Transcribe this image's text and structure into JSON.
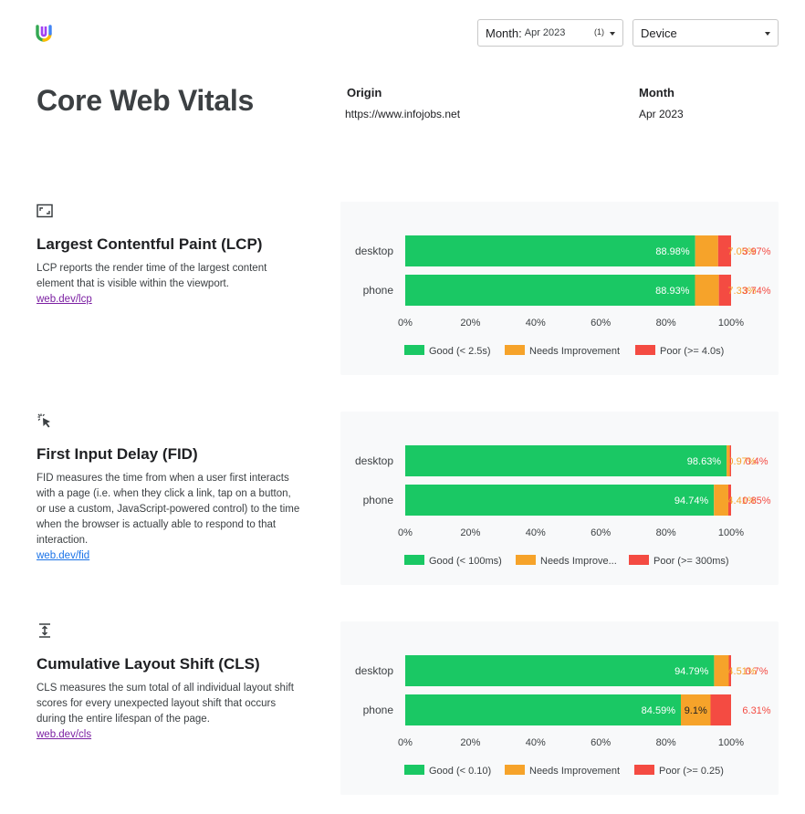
{
  "filters": {
    "month_label": "Month:",
    "month_value": "Apr 2023",
    "month_count": "(1)",
    "device_label": "Device"
  },
  "page_title": "Core Web Vitals",
  "meta": {
    "origin_label": "Origin",
    "origin_value": "https://www.infojobs.net",
    "month_label": "Month",
    "month_value": "Apr 2023"
  },
  "colors": {
    "good": "#1ac864",
    "needs": "#f6a32a",
    "poor": "#f44b42",
    "panel": "#f8f9fa"
  },
  "sections": [
    {
      "icon": "lcp-viewport-icon",
      "title": "Largest Contentful Paint (LCP)",
      "description": "LCP reports the render time of the largest content element that is visible within the viewport.",
      "link": "web.dev/lcp"
    },
    {
      "icon": "fid-click-icon",
      "title": "First Input Delay (FID)",
      "description": "FID measures the time from when a user first interacts with a page (i.e. when they click a link, tap on a button, or use a custom, JavaScript-powered control) to the time when the browser is actually able to respond to that interaction.",
      "link": "web.dev/fid"
    },
    {
      "icon": "cls-shift-icon",
      "title": "Cumulative Layout Shift (CLS)",
      "description": "CLS measures the sum total of all individual layout shift scores for every unexpected layout shift that occurs during the entire lifespan of the page.",
      "link": "web.dev/cls"
    }
  ],
  "chart_data": [
    {
      "type": "bar",
      "orientation": "horizontal",
      "stacked": true,
      "categories": [
        "desktop",
        "phone"
      ],
      "series": [
        {
          "name": "Good (< 2.5s)",
          "values": [
            88.98,
            88.93
          ],
          "labels": [
            "88.98%",
            "88.93%"
          ]
        },
        {
          "name": "Needs Improvement",
          "values": [
            7.05,
            7.33
          ],
          "labels": [
            "7.05%",
            "7.33%"
          ]
        },
        {
          "name": "Poor (>= 4.0s)",
          "values": [
            3.97,
            3.74
          ],
          "labels": [
            "3.97%",
            "3.74%"
          ]
        }
      ],
      "xlim": [
        0,
        100
      ],
      "xticks": [
        "0%",
        "20%",
        "40%",
        "60%",
        "80%",
        "100%"
      ],
      "legend": "bottom"
    },
    {
      "type": "bar",
      "orientation": "horizontal",
      "stacked": true,
      "categories": [
        "desktop",
        "phone"
      ],
      "series": [
        {
          "name": "Good (< 100ms)",
          "values": [
            98.63,
            94.74
          ],
          "labels": [
            "98.63%",
            "94.74%"
          ]
        },
        {
          "name": "Needs Improve...",
          "values": [
            0.97,
            4.41
          ],
          "labels": [
            "0.97%",
            "4.41%"
          ]
        },
        {
          "name": "Poor (>= 300ms)",
          "values": [
            0.4,
            0.85
          ],
          "labels": [
            "0.4%",
            "0.85%"
          ]
        }
      ],
      "xlim": [
        0,
        100
      ],
      "xticks": [
        "0%",
        "20%",
        "40%",
        "60%",
        "80%",
        "100%"
      ],
      "legend": "bottom"
    },
    {
      "type": "bar",
      "orientation": "horizontal",
      "stacked": true,
      "categories": [
        "desktop",
        "phone"
      ],
      "series": [
        {
          "name": "Good (< 0.10)",
          "values": [
            94.79,
            84.59
          ],
          "labels": [
            "94.79%",
            "84.59%"
          ]
        },
        {
          "name": "Needs Improvement",
          "values": [
            4.51,
            9.1
          ],
          "labels": [
            "4.51%",
            "9.1%"
          ]
        },
        {
          "name": "Poor (>= 0.25)",
          "values": [
            0.7,
            6.31
          ],
          "labels": [
            "0.7%",
            "6.31%"
          ]
        }
      ],
      "xlim": [
        0,
        100
      ],
      "xticks": [
        "0%",
        "20%",
        "40%",
        "60%",
        "80%",
        "100%"
      ],
      "legend": "bottom"
    }
  ]
}
